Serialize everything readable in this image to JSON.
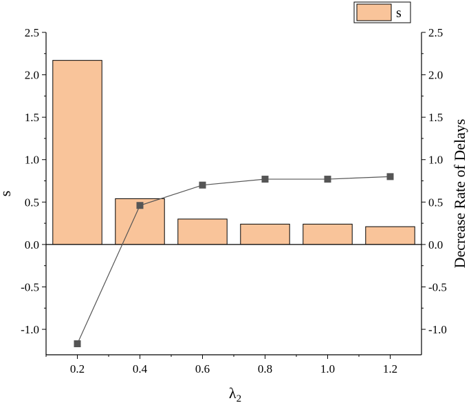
{
  "chart_data": {
    "type": "bar+line",
    "xlabel_main": "λ",
    "xlabel_sub": "2",
    "ylabel_left": "s",
    "ylabel_right": "Decrease Rate of Delays",
    "x_ticks": [
      "0.2",
      "0.4",
      "0.6",
      "0.8",
      "1.0",
      "1.2"
    ],
    "y_ticks": [
      "-1.0",
      "-0.5",
      "0.0",
      "0.5",
      "1.0",
      "1.5",
      "2.0",
      "2.5"
    ],
    "xlim": [
      0.1,
      1.3
    ],
    "ylim": [
      -1.3,
      2.5
    ],
    "x": [
      0.2,
      0.4,
      0.6,
      0.8,
      1.0,
      1.2
    ],
    "series": [
      {
        "name": "s",
        "kind": "bar",
        "values": [
          2.17,
          0.54,
          0.3,
          0.24,
          0.24,
          0.21
        ]
      },
      {
        "kind": "line",
        "axis": "right",
        "values": [
          -1.17,
          0.46,
          0.7,
          0.77,
          0.77,
          0.8
        ]
      }
    ],
    "legend": {
      "label": "s",
      "position": "top-right"
    },
    "colors": {
      "bar_fill": "#F9C49A",
      "bar_stroke": "#000000",
      "line": "#555555",
      "marker": "#555555"
    }
  }
}
